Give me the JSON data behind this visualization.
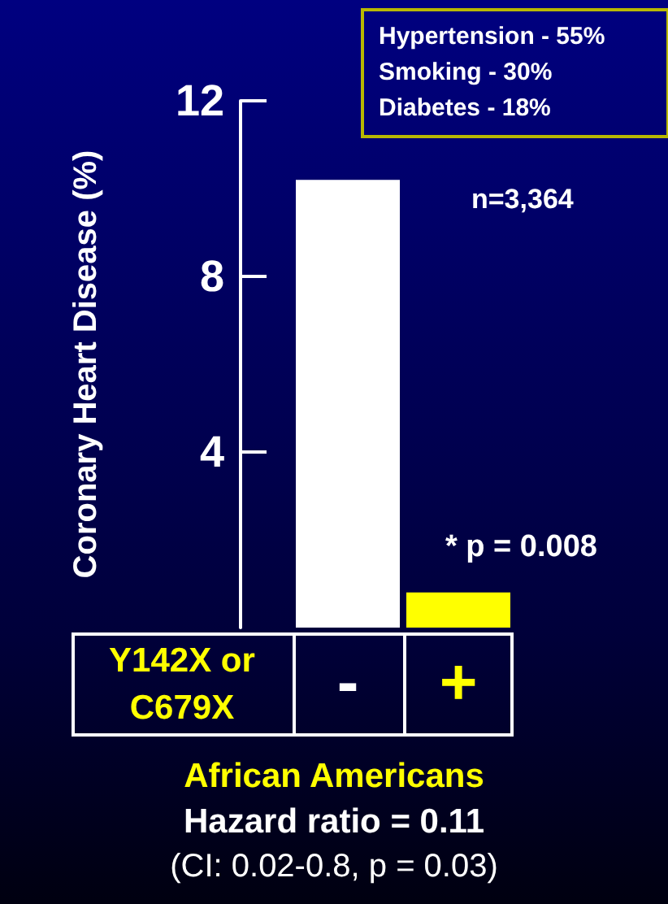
{
  "chart_data": {
    "type": "bar",
    "title": "African Americans",
    "subtitle": "Hazard ratio = 0.11",
    "ylabel": "Coronary Heart Disease (%)",
    "xlabel": "Y142X or C679X",
    "categories": [
      "-",
      "+"
    ],
    "values": [
      10.2,
      0.8
    ],
    "colors": [
      "#ffffff",
      "#ffff00"
    ],
    "ylim": [
      0,
      12
    ],
    "yticks": [
      4,
      8,
      12
    ],
    "annotations": [
      "Hypertension - 55%\nSmoking - 30%\nDiabetes - 18%",
      "n=3,364",
      {
        "text": "* p = 0.008",
        "x": "+",
        "y": 0.8
      },
      "(CI: 0.02-0.8, p = 0.03)"
    ]
  }
}
